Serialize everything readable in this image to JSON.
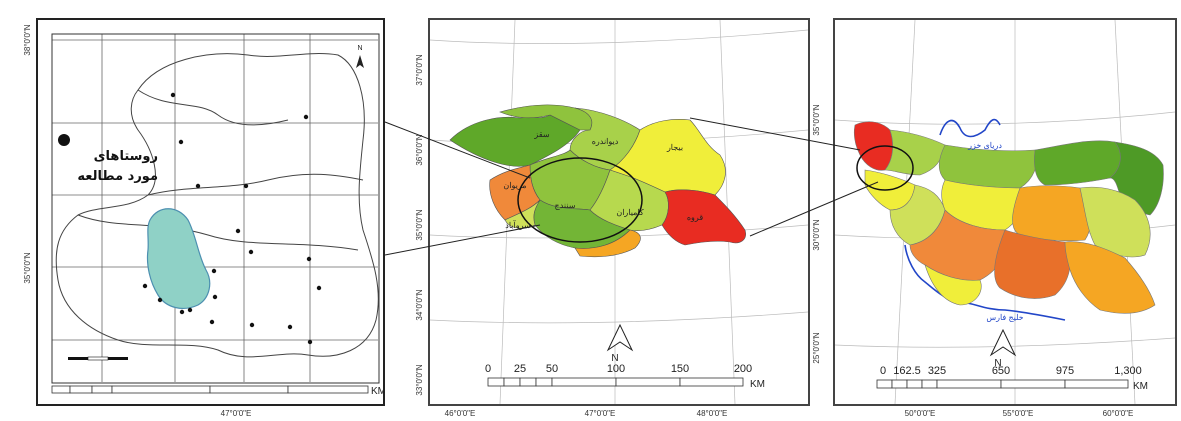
{
  "left_map": {
    "legend_line1": "روستاهای",
    "legend_line2": "مورد مطالعه",
    "lat_top": "38°0'0\"N",
    "lat_mid": "35°0'0\"N",
    "lon_bottom": "47°0'0\"E",
    "km_label": "KM",
    "north_label": "N"
  },
  "middle_map": {
    "north_label": "N",
    "scale_labels": [
      "0",
      "25",
      "50",
      "100",
      "150",
      "200"
    ],
    "km_label": "KM",
    "lat_labels": [
      "37°0'0\"N",
      "36°0'0\"N",
      "35°0'0\"N",
      "34°0'0\"N",
      "33°0'0\"N"
    ],
    "lon_labels": [
      "46°0'0\"E",
      "47°0'0\"E",
      "48°0'0\"E"
    ],
    "region_labels": [
      "سقز",
      "دیواندره",
      "بیجار",
      "مریوان",
      "سنندج",
      "قروه",
      "سروآباد",
      "کامیاران"
    ]
  },
  "right_map": {
    "north_label": "N",
    "scale_labels": [
      "0",
      "162.5",
      "325",
      "650",
      "975",
      "1,300"
    ],
    "km_label": "KM",
    "lat_labels": [
      "35°0'0\"N",
      "30°0'0\"N",
      "25°0'0\"N"
    ],
    "lon_labels": [
      "50°0'0\"E",
      "55°0'0\"E",
      "60°0'0\"E"
    ],
    "sea_north": "دریای خزر",
    "sea_south": "خلیج فارس"
  }
}
